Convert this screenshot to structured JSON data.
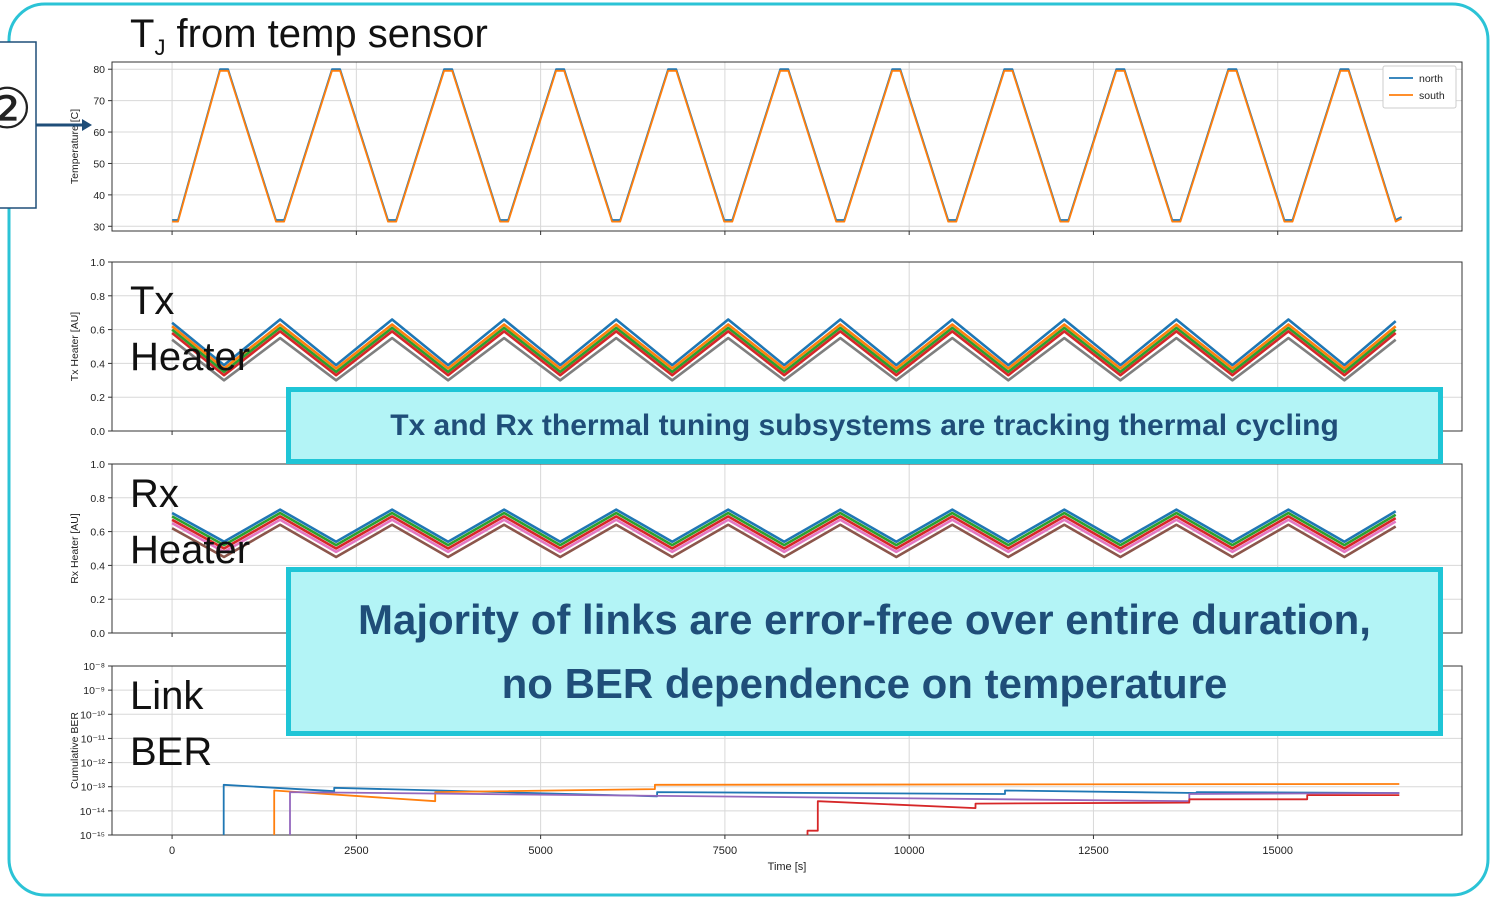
{
  "marker": "②",
  "chart_data": [
    {
      "type": "line",
      "title": "T",
      "title_subscript": "J",
      "title_suffix": " from temp sensor",
      "ylabel": "Temperature [C]",
      "xlim": [
        -815,
        17500
      ],
      "xticks": [
        0,
        2500,
        5000,
        7500,
        10000,
        12500,
        15000
      ],
      "ylim": [
        28.5,
        82.3
      ],
      "yticks": [
        30,
        40,
        50,
        60,
        70,
        80
      ],
      "grid": true,
      "legend": "upper right",
      "x": [
        0,
        80,
        650,
        760,
        1410,
        1520,
        2170,
        2280,
        2930,
        3040,
        3690,
        3800,
        4450,
        4560,
        5210,
        5320,
        5970,
        6080,
        6730,
        6840,
        7490,
        7600,
        8250,
        8360,
        9010,
        9120,
        9770,
        9880,
        10530,
        10640,
        11290,
        11400,
        12050,
        12160,
        12810,
        12920,
        13570,
        13680,
        14330,
        14440,
        15090,
        15200,
        15850,
        15960,
        16600,
        16680
      ],
      "series": [
        {
          "name": "north",
          "color": "#1f77b4",
          "values": [
            32,
            32,
            80,
            80,
            32,
            32,
            80,
            80,
            32,
            32,
            80,
            80,
            32,
            32,
            80,
            80,
            32,
            32,
            80,
            80,
            32,
            32,
            80,
            80,
            32,
            32,
            80,
            80,
            32,
            32,
            80,
            80,
            32,
            32,
            80,
            80,
            32,
            32,
            80,
            80,
            32,
            32,
            80,
            80,
            32,
            33
          ]
        },
        {
          "name": "south",
          "color": "#ff7f0e",
          "values": [
            31.5,
            31.5,
            79.5,
            79.5,
            31.5,
            31.5,
            79.5,
            79.5,
            31.5,
            31.5,
            79.5,
            79.5,
            31.5,
            31.5,
            79.5,
            79.5,
            31.5,
            31.5,
            79.5,
            79.5,
            31.5,
            31.5,
            79.5,
            79.5,
            31.5,
            31.5,
            79.5,
            79.5,
            31.5,
            31.5,
            79.5,
            79.5,
            31.5,
            31.5,
            79.5,
            79.5,
            31.5,
            31.5,
            79.5,
            79.5,
            31.5,
            31.5,
            79.5,
            79.5,
            31.5,
            32.5
          ]
        }
      ]
    },
    {
      "type": "line",
      "title": "Tx Heater",
      "ylabel": "Tx Heater [AU]",
      "xlim": [
        -815,
        17500
      ],
      "xticks": [
        0,
        2500,
        5000,
        7500,
        10000,
        12500,
        15000
      ],
      "ylim": [
        0,
        1
      ],
      "yticks": [
        {
          "value": 0,
          "label": "0.0"
        },
        0.2,
        0.4,
        0.6,
        0.8,
        {
          "value": 1,
          "label": "1.0"
        }
      ],
      "grid": true,
      "x": [
        0,
        705,
        1465,
        2225,
        2985,
        3745,
        4505,
        5265,
        6025,
        6785,
        7545,
        8305,
        9065,
        9825,
        10585,
        11345,
        12105,
        12865,
        13625,
        14385,
        15145,
        15905,
        16600
      ],
      "series": [
        {
          "color": "#1f77b4",
          "values": [
            0.64,
            0.39,
            0.66,
            0.39,
            0.66,
            0.39,
            0.66,
            0.39,
            0.66,
            0.39,
            0.66,
            0.39,
            0.66,
            0.39,
            0.66,
            0.39,
            0.66,
            0.39,
            0.66,
            0.39,
            0.66,
            0.39,
            0.65
          ]
        },
        {
          "color": "#ff7f0e",
          "values": [
            0.62,
            0.37,
            0.63,
            0.37,
            0.63,
            0.37,
            0.63,
            0.37,
            0.63,
            0.37,
            0.63,
            0.37,
            0.63,
            0.37,
            0.63,
            0.37,
            0.63,
            0.37,
            0.63,
            0.37,
            0.63,
            0.37,
            0.62
          ]
        },
        {
          "color": "#2ca02c",
          "values": [
            0.6,
            0.35,
            0.61,
            0.35,
            0.61,
            0.35,
            0.61,
            0.35,
            0.61,
            0.35,
            0.61,
            0.35,
            0.61,
            0.35,
            0.61,
            0.35,
            0.61,
            0.35,
            0.61,
            0.35,
            0.61,
            0.35,
            0.6
          ]
        },
        {
          "color": "#d62728",
          "values": [
            0.58,
            0.33,
            0.59,
            0.33,
            0.59,
            0.33,
            0.59,
            0.33,
            0.59,
            0.33,
            0.59,
            0.33,
            0.59,
            0.33,
            0.59,
            0.33,
            0.59,
            0.33,
            0.59,
            0.33,
            0.59,
            0.33,
            0.58
          ]
        },
        {
          "color": "#7f7f7f",
          "values": [
            0.54,
            0.3,
            0.55,
            0.3,
            0.55,
            0.3,
            0.55,
            0.3,
            0.55,
            0.3,
            0.55,
            0.3,
            0.55,
            0.3,
            0.55,
            0.3,
            0.55,
            0.3,
            0.55,
            0.3,
            0.55,
            0.3,
            0.54
          ]
        }
      ]
    },
    {
      "type": "line",
      "title": "Rx Heater",
      "ylabel": "Rx Heater [AU]",
      "xlim": [
        -815,
        17500
      ],
      "xticks": [
        0,
        2500,
        5000,
        7500,
        10000,
        12500,
        15000
      ],
      "ylim": [
        0,
        1
      ],
      "yticks": [
        {
          "value": 0,
          "label": "0.0"
        },
        0.2,
        0.4,
        0.6,
        0.8,
        {
          "value": 1,
          "label": "1.0"
        }
      ],
      "grid": true,
      "x": [
        0,
        705,
        1465,
        2225,
        2985,
        3745,
        4505,
        5265,
        6025,
        6785,
        7545,
        8305,
        9065,
        9825,
        10585,
        11345,
        12105,
        12865,
        13625,
        14385,
        15145,
        15905,
        16600
      ],
      "series": [
        {
          "color": "#1f77b4",
          "values": [
            0.71,
            0.54,
            0.73,
            0.54,
            0.73,
            0.54,
            0.73,
            0.54,
            0.73,
            0.54,
            0.73,
            0.54,
            0.73,
            0.54,
            0.73,
            0.54,
            0.73,
            0.54,
            0.73,
            0.54,
            0.73,
            0.54,
            0.72
          ]
        },
        {
          "color": "#2ca02c",
          "values": [
            0.69,
            0.52,
            0.71,
            0.52,
            0.71,
            0.52,
            0.71,
            0.52,
            0.71,
            0.52,
            0.71,
            0.52,
            0.71,
            0.52,
            0.71,
            0.52,
            0.71,
            0.52,
            0.71,
            0.52,
            0.71,
            0.52,
            0.7
          ]
        },
        {
          "color": "#d62728",
          "values": [
            0.67,
            0.5,
            0.69,
            0.5,
            0.69,
            0.5,
            0.69,
            0.5,
            0.69,
            0.5,
            0.69,
            0.5,
            0.69,
            0.5,
            0.69,
            0.5,
            0.69,
            0.5,
            0.69,
            0.5,
            0.69,
            0.5,
            0.68
          ]
        },
        {
          "color": "#e377c2",
          "values": [
            0.65,
            0.48,
            0.67,
            0.48,
            0.67,
            0.48,
            0.67,
            0.48,
            0.67,
            0.48,
            0.67,
            0.48,
            0.67,
            0.48,
            0.67,
            0.48,
            0.67,
            0.48,
            0.67,
            0.48,
            0.67,
            0.48,
            0.66
          ]
        },
        {
          "color": "#8c564b",
          "values": [
            0.62,
            0.45,
            0.64,
            0.45,
            0.64,
            0.45,
            0.64,
            0.45,
            0.64,
            0.45,
            0.64,
            0.45,
            0.64,
            0.45,
            0.64,
            0.45,
            0.64,
            0.45,
            0.64,
            0.45,
            0.64,
            0.45,
            0.63
          ]
        }
      ]
    },
    {
      "type": "line",
      "title": "Link BER",
      "ylabel": "Cumulative BER",
      "xlabel": "Time [s]",
      "log_y": true,
      "xlim": [
        -815,
        17500
      ],
      "xticks": [
        0,
        2500,
        5000,
        7500,
        10000,
        12500,
        15000
      ],
      "ylim": [
        1e-15,
        1e-08
      ],
      "yticks": [
        {
          "value": 1e-15,
          "label": "10⁻¹⁵"
        },
        {
          "value": 1e-14,
          "label": "10⁻¹⁴"
        },
        {
          "value": 1e-13,
          "label": "10⁻¹³"
        },
        {
          "value": 1e-12,
          "label": "10⁻¹²"
        },
        {
          "value": 1e-11,
          "label": "10⁻¹¹"
        },
        {
          "value": 1e-10,
          "label": "10⁻¹⁰"
        },
        {
          "value": 1e-09,
          "label": "10⁻⁹"
        },
        {
          "value": 1e-08,
          "label": "10⁻⁸"
        }
      ],
      "grid": true,
      "series": [
        {
          "color": "#1f77b4",
          "x": [
            700,
            700,
            2200,
            2200,
            6580,
            6580,
            11300,
            11300,
            13900,
            13900,
            16650
          ],
          "values": [
            1e-15,
            1.2e-13,
            6.5e-14,
            9e-14,
            4e-14,
            6e-14,
            5e-14,
            7e-14,
            5.5e-14,
            6e-14,
            5.5e-14
          ]
        },
        {
          "color": "#ff7f0e",
          "x": [
            1385,
            1385,
            3570,
            3570,
            6550,
            6550,
            16650
          ],
          "values": [
            1e-15,
            7e-14,
            2.5e-14,
            6e-14,
            8e-14,
            1.2e-13,
            1.3e-13
          ]
        },
        {
          "color": "#9467bd",
          "x": [
            1600,
            1600,
            13800,
            13800,
            16650
          ],
          "values": [
            1e-15,
            6e-14,
            2.5e-14,
            5e-14,
            5.5e-14
          ]
        },
        {
          "color": "#d62728",
          "x": [
            8620,
            8620,
            8760,
            8760,
            10900,
            10900,
            13800,
            13800,
            15400,
            15400,
            16650
          ],
          "values": [
            1e-15,
            1.5e-15,
            1.5e-15,
            2.5e-14,
            1.3e-14,
            2e-14,
            2.2e-14,
            3e-14,
            3e-14,
            4.5e-14,
            4.5e-14
          ]
        }
      ]
    }
  ],
  "callouts": [
    "Tx and Rx thermal tuning subsystems are tracking thermal cycling",
    "Majority of links are error-free over entire duration, no BER dependence on temperature"
  ]
}
